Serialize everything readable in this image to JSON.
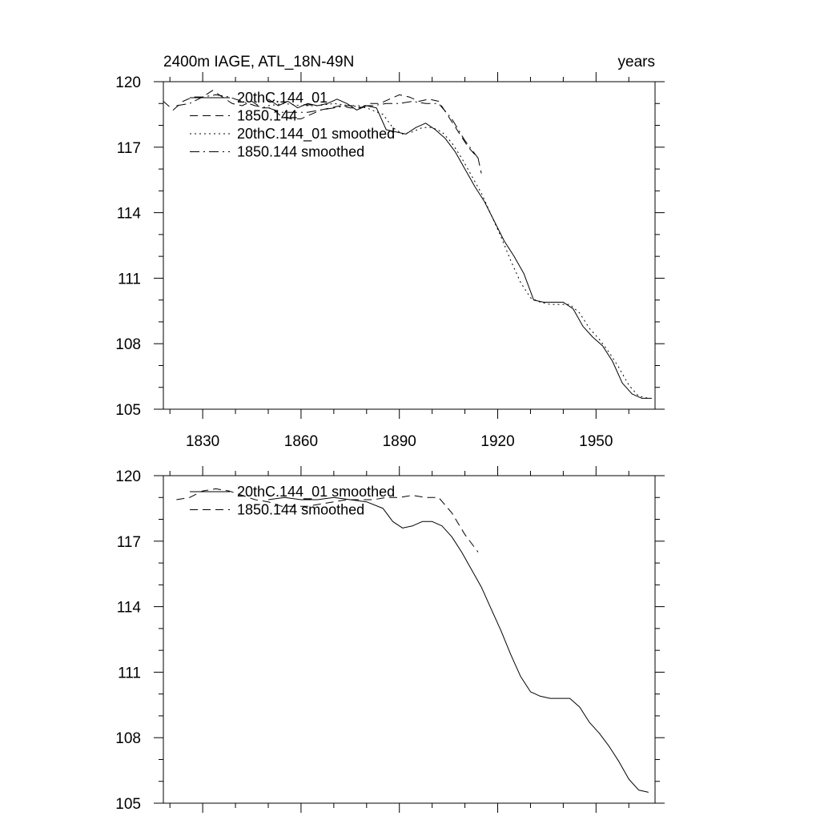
{
  "chart_data": [
    {
      "type": "line",
      "title": "2400m IAGE, ATL_18N-49N",
      "right_title": "years",
      "xlim": [
        1818,
        1968
      ],
      "ylim": [
        105,
        120
      ],
      "xticks": [
        1830,
        1860,
        1890,
        1920,
        1950
      ],
      "xtick_labels": [
        "1830",
        "1860",
        "1890",
        "1920",
        "1950"
      ],
      "yticks": [
        105,
        108,
        111,
        114,
        117,
        120
      ],
      "ytick_labels": [
        "105",
        "108",
        "111",
        "114",
        "117",
        "120"
      ],
      "show_xtick_labels": true,
      "legend_position": "top-left",
      "series": [
        {
          "name": "20thC.144_01",
          "style": "solid",
          "x": [
            1850,
            1853,
            1856,
            1859,
            1862,
            1865,
            1868,
            1871,
            1874,
            1877,
            1880,
            1883,
            1886,
            1889,
            1892,
            1895,
            1898,
            1901,
            1904,
            1907,
            1910,
            1913,
            1916,
            1919,
            1922,
            1925,
            1928,
            1931,
            1934,
            1937,
            1940,
            1943,
            1946,
            1949,
            1952,
            1955,
            1958,
            1961,
            1964,
            1967
          ],
          "values": [
            119.2,
            118.9,
            119.1,
            118.8,
            119.0,
            118.9,
            119.0,
            119.2,
            119.0,
            118.7,
            118.9,
            118.8,
            117.8,
            117.7,
            117.6,
            117.9,
            118.1,
            117.8,
            117.4,
            116.8,
            116.0,
            115.2,
            114.5,
            113.6,
            112.7,
            112.0,
            111.2,
            110.0,
            109.9,
            109.9,
            109.9,
            109.6,
            108.8,
            108.3,
            107.9,
            107.2,
            106.2,
            105.7,
            105.5,
            105.5
          ]
        },
        {
          "name": "1850.144",
          "style": "dashed",
          "x": [
            1818,
            1821,
            1824,
            1827,
            1830,
            1833,
            1836,
            1839,
            1842,
            1845,
            1848,
            1851,
            1854,
            1857,
            1860,
            1863,
            1866,
            1869,
            1872,
            1875,
            1878,
            1881,
            1884,
            1887,
            1890,
            1893,
            1896,
            1899,
            1902,
            1905,
            1908,
            1911,
            1914,
            1915
          ],
          "values": [
            119.1,
            118.7,
            119.1,
            119.3,
            119.3,
            119.6,
            119.3,
            119.0,
            118.9,
            119.1,
            118.8,
            118.8,
            118.4,
            118.3,
            118.3,
            118.5,
            118.7,
            118.8,
            118.9,
            118.8,
            118.8,
            119.0,
            119.0,
            119.2,
            119.4,
            119.3,
            119.1,
            119.2,
            119.1,
            118.4,
            117.7,
            117.0,
            116.5,
            115.8
          ]
        },
        {
          "name": "20thC.144_01 smoothed",
          "style": "dotted",
          "x": [
            1850,
            1855,
            1860,
            1865,
            1870,
            1875,
            1880,
            1885,
            1888,
            1891,
            1894,
            1897,
            1900,
            1903,
            1906,
            1909,
            1912,
            1915,
            1918,
            1921,
            1924,
            1927,
            1930,
            1933,
            1936,
            1939,
            1942,
            1945,
            1948,
            1951,
            1954,
            1957,
            1960,
            1963,
            1966
          ],
          "values": [
            118.9,
            119.0,
            118.9,
            118.9,
            119.0,
            118.9,
            118.8,
            118.5,
            117.9,
            117.6,
            117.7,
            117.9,
            117.9,
            117.7,
            117.2,
            116.5,
            115.7,
            114.9,
            113.9,
            112.9,
            111.8,
            110.8,
            110.1,
            109.9,
            109.8,
            109.8,
            109.8,
            109.4,
            108.7,
            108.2,
            107.6,
            106.9,
            106.1,
            105.6,
            105.5
          ]
        },
        {
          "name": "1850.144 smoothed",
          "style": "dashdot",
          "x": [
            1822,
            1826,
            1830,
            1834,
            1838,
            1842,
            1846,
            1850,
            1854,
            1858,
            1862,
            1866,
            1870,
            1874,
            1878,
            1882,
            1886,
            1890,
            1894,
            1898,
            1902,
            1906,
            1910,
            1914
          ],
          "values": [
            118.9,
            119.0,
            119.3,
            119.4,
            119.3,
            119.1,
            118.9,
            118.8,
            118.6,
            118.6,
            118.6,
            118.7,
            118.8,
            118.9,
            118.9,
            118.9,
            119.0,
            119.0,
            119.1,
            119.0,
            119.0,
            118.3,
            117.3,
            116.5
          ]
        }
      ]
    },
    {
      "type": "line",
      "title": "",
      "right_title": "",
      "xlim": [
        1818,
        1968
      ],
      "ylim": [
        105,
        120
      ],
      "xticks": [
        1830,
        1860,
        1890,
        1920,
        1950
      ],
      "xtick_labels": [],
      "yticks": [
        105,
        108,
        111,
        114,
        117,
        120
      ],
      "ytick_labels": [
        "105",
        "108",
        "111",
        "114",
        "117",
        "120"
      ],
      "show_xtick_labels": false,
      "legend_position": "top-left",
      "series": [
        {
          "name": "20thC.144_01 smoothed",
          "style": "solid",
          "x": [
            1850,
            1855,
            1860,
            1865,
            1870,
            1875,
            1880,
            1885,
            1888,
            1891,
            1894,
            1897,
            1900,
            1903,
            1906,
            1909,
            1912,
            1915,
            1918,
            1921,
            1924,
            1927,
            1930,
            1933,
            1936,
            1939,
            1942,
            1945,
            1948,
            1951,
            1954,
            1957,
            1960,
            1963,
            1966
          ],
          "values": [
            118.9,
            119.0,
            118.9,
            118.9,
            119.0,
            118.9,
            118.8,
            118.5,
            117.9,
            117.6,
            117.7,
            117.9,
            117.9,
            117.7,
            117.2,
            116.5,
            115.7,
            114.9,
            113.9,
            112.9,
            111.8,
            110.8,
            110.1,
            109.9,
            109.8,
            109.8,
            109.8,
            109.4,
            108.7,
            108.2,
            107.6,
            106.9,
            106.1,
            105.6,
            105.5
          ]
        },
        {
          "name": "1850.144 smoothed",
          "style": "dashed",
          "x": [
            1822,
            1826,
            1830,
            1834,
            1838,
            1842,
            1846,
            1850,
            1854,
            1858,
            1862,
            1866,
            1870,
            1874,
            1878,
            1882,
            1886,
            1890,
            1894,
            1898,
            1902,
            1906,
            1910,
            1914
          ],
          "values": [
            118.9,
            119.0,
            119.3,
            119.4,
            119.3,
            119.1,
            118.9,
            118.8,
            118.6,
            118.6,
            118.6,
            118.7,
            118.8,
            118.9,
            118.9,
            118.9,
            119.0,
            119.0,
            119.1,
            119.0,
            119.0,
            118.3,
            117.3,
            116.5
          ]
        }
      ]
    }
  ]
}
